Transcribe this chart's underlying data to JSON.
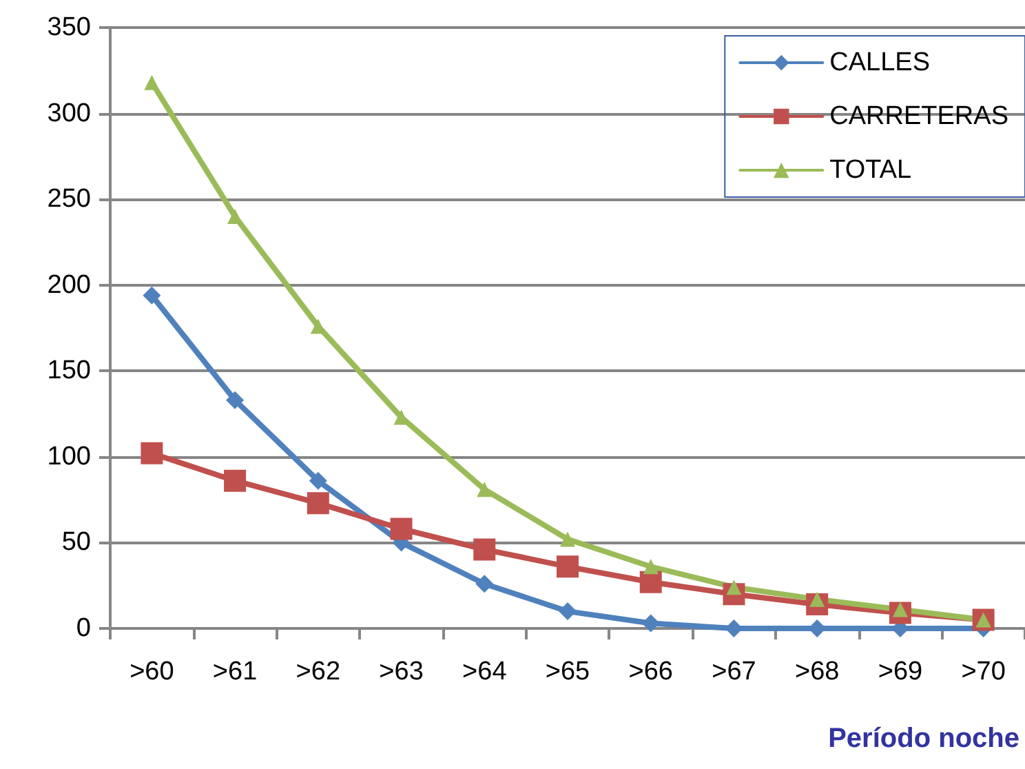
{
  "chart_data": {
    "type": "line",
    "xlabel": "Período noche",
    "categories": [
      ">60",
      ">61",
      ">62",
      ">63",
      ">64",
      ">65",
      ">66",
      ">67",
      ">68",
      ">69",
      ">70"
    ],
    "series": [
      {
        "name": "CALLES",
        "color": "#4f81bd",
        "marker": "diamond",
        "values": [
          194,
          133,
          86,
          50,
          26,
          10,
          3,
          0,
          0,
          0,
          0
        ]
      },
      {
        "name": "CARRETERAS",
        "color": "#c0504d",
        "marker": "square",
        "values": [
          102,
          86,
          73,
          58,
          46,
          36,
          27,
          20,
          14,
          9,
          5
        ]
      },
      {
        "name": "TOTAL",
        "color": "#9bbb59",
        "marker": "triangle",
        "values": [
          318,
          240,
          176,
          123,
          81,
          52,
          36,
          24,
          17,
          11,
          5
        ]
      }
    ],
    "ylim": [
      0,
      350
    ],
    "yticks": [
      0,
      50,
      100,
      150,
      200,
      250,
      300,
      350
    ],
    "grid": "y",
    "legend": "top right",
    "line_style": "solid"
  }
}
